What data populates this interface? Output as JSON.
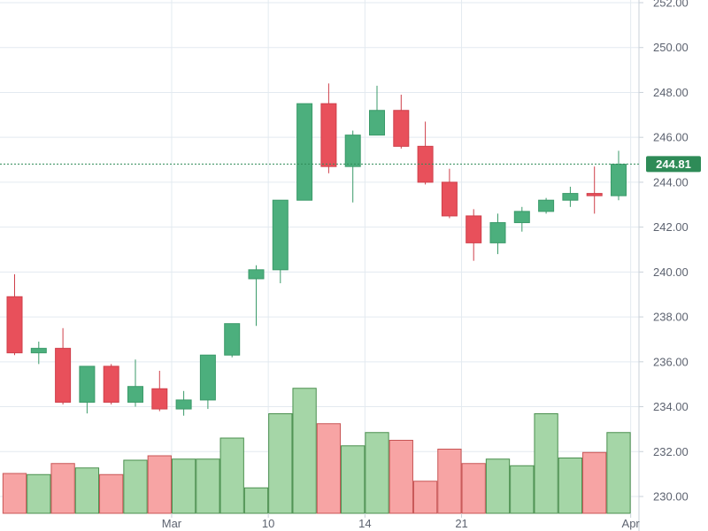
{
  "colors": {
    "up_body": "#4caf7d",
    "up_border": "#3a9a69",
    "down_body": "#e8505b",
    "down_border": "#cf3f4a",
    "vol_up_fill": "#a5d6a7",
    "vol_up_border": "#4a8f4e",
    "vol_down_fill": "#f7a4a4",
    "vol_down_border": "#c85555",
    "grid": "#e3eaf0",
    "axis_text": "#5d6370",
    "price_tag": "#2e8b57",
    "price_line": "#2e8b57"
  },
  "chart_data": {
    "type": "candlestick",
    "y_axis": {
      "min": 229.6,
      "max": 252.0,
      "ticks": [
        "230.00",
        "232.00",
        "234.00",
        "236.00",
        "238.00",
        "240.00",
        "242.00",
        "244.00",
        "246.00",
        "248.00",
        "250.00",
        "252.00"
      ]
    },
    "x_labels": [
      {
        "label": "Mar",
        "after_index": 6.5
      },
      {
        "label": "10",
        "after_index": 10.5
      },
      {
        "label": "14",
        "after_index": 14.5
      },
      {
        "label": "21",
        "after_index": 18.5
      },
      {
        "label": "Apr",
        "after_index": 25.5
      }
    ],
    "last_price": "244.81",
    "last_price_value": 244.81,
    "candles": [
      {
        "open": 238.9,
        "high": 239.9,
        "low": 236.3,
        "close": 236.4,
        "volume": 1.8
      },
      {
        "open": 236.4,
        "high": 236.9,
        "low": 235.9,
        "close": 236.6,
        "volume": 1.75
      },
      {
        "open": 236.6,
        "high": 237.5,
        "low": 234.1,
        "close": 234.2,
        "volume": 2.25
      },
      {
        "open": 234.2,
        "high": 235.8,
        "low": 233.7,
        "close": 235.8,
        "volume": 2.05
      },
      {
        "open": 235.8,
        "high": 235.9,
        "low": 234.1,
        "close": 234.2,
        "volume": 1.75
      },
      {
        "open": 234.2,
        "high": 236.1,
        "low": 234.0,
        "close": 234.9,
        "volume": 2.4
      },
      {
        "open": 234.8,
        "high": 235.6,
        "low": 233.8,
        "close": 233.9,
        "volume": 2.6
      },
      {
        "open": 233.9,
        "high": 234.7,
        "low": 233.6,
        "close": 234.3,
        "volume": 2.45
      },
      {
        "open": 234.3,
        "high": 236.3,
        "low": 233.9,
        "close": 236.3,
        "volume": 2.45
      },
      {
        "open": 236.3,
        "high": 237.7,
        "low": 236.2,
        "close": 237.7,
        "volume": 3.4
      },
      {
        "open": 239.7,
        "high": 240.3,
        "low": 237.6,
        "close": 240.1,
        "volume": 1.15
      },
      {
        "open": 240.1,
        "high": 243.2,
        "low": 239.5,
        "close": 243.2,
        "volume": 4.5
      },
      {
        "open": 243.2,
        "high": 247.5,
        "low": 243.2,
        "close": 247.5,
        "volume": 5.65
      },
      {
        "open": 247.5,
        "high": 248.4,
        "low": 244.4,
        "close": 244.7,
        "volume": 4.05
      },
      {
        "open": 244.7,
        "high": 246.3,
        "low": 243.1,
        "close": 246.1,
        "volume": 3.05
      },
      {
        "open": 246.1,
        "high": 248.3,
        "low": 246.1,
        "close": 247.2,
        "volume": 3.65
      },
      {
        "open": 247.2,
        "high": 247.9,
        "low": 245.5,
        "close": 245.6,
        "volume": 3.3
      },
      {
        "open": 245.6,
        "high": 246.7,
        "low": 243.9,
        "close": 244.0,
        "volume": 1.45
      },
      {
        "open": 244.0,
        "high": 244.6,
        "low": 242.4,
        "close": 242.5,
        "volume": 2.9
      },
      {
        "open": 242.5,
        "high": 242.8,
        "low": 240.5,
        "close": 241.3,
        "volume": 2.25
      },
      {
        "open": 241.3,
        "high": 242.6,
        "low": 240.8,
        "close": 242.2,
        "volume": 2.45
      },
      {
        "open": 242.2,
        "high": 242.9,
        "low": 241.8,
        "close": 242.7,
        "volume": 2.15
      },
      {
        "open": 242.7,
        "high": 243.3,
        "low": 242.6,
        "close": 243.2,
        "volume": 4.5
      },
      {
        "open": 243.2,
        "high": 243.8,
        "low": 242.9,
        "close": 243.5,
        "volume": 2.5
      },
      {
        "open": 243.5,
        "high": 244.7,
        "low": 242.6,
        "close": 243.4,
        "volume": 2.75
      },
      {
        "open": 243.4,
        "high": 245.4,
        "low": 243.2,
        "close": 244.8,
        "volume": 3.65
      }
    ]
  }
}
